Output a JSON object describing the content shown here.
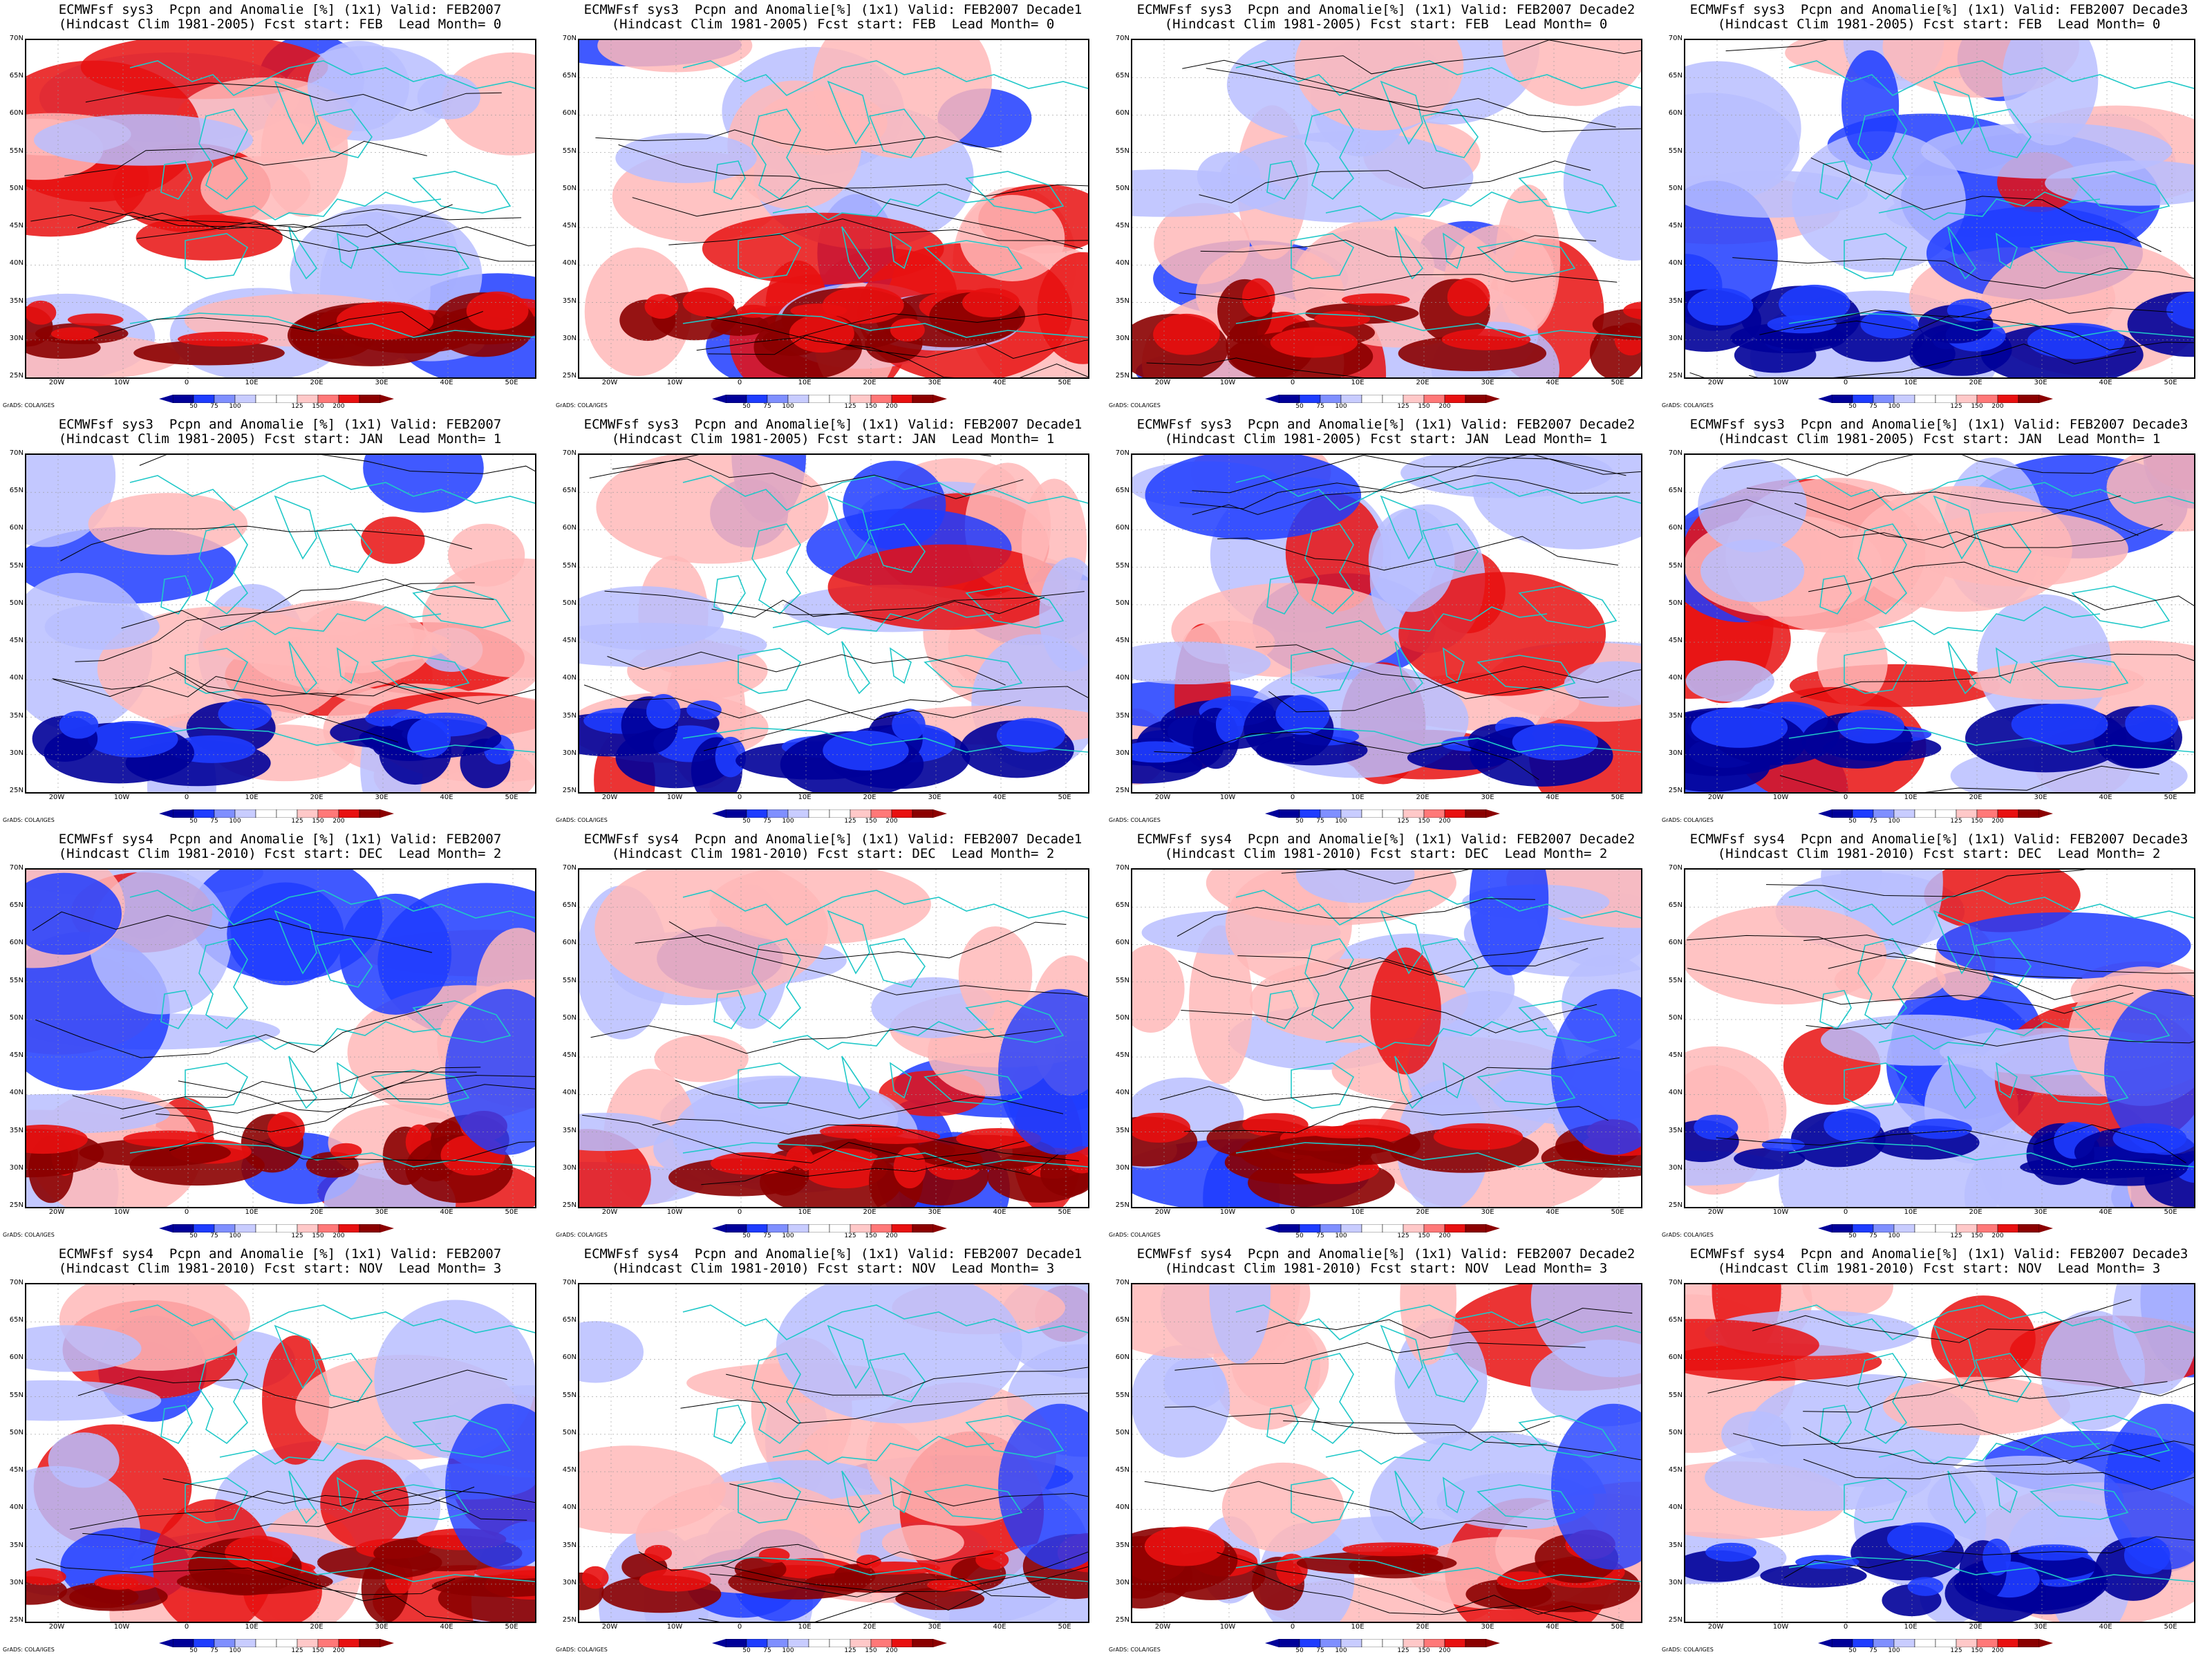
{
  "panels": [
    {
      "line1": "ECMWFsf sys3  Pcpn and Anomalie [%] (1x1) Valid: FEB2007",
      "line2": "(Hindcast Clim 1981-2005) Fcst start: FEB  Lead Month= 0"
    },
    {
      "line1": "ECMWFsf sys3  Pcpn and Anomalie[%] (1x1) Valid: FEB2007 Decade1",
      "line2": "(Hindcast Clim 1981-2005) Fcst start: FEB  Lead Month= 0"
    },
    {
      "line1": "ECMWFsf sys3  Pcpn and Anomalie[%] (1x1) Valid: FEB2007 Decade2",
      "line2": "(Hindcast Clim 1981-2005) Fcst start: FEB  Lead Month= 0"
    },
    {
      "line1": "ECMWFsf sys3  Pcpn and Anomalie[%] (1x1) Valid: FEB2007 Decade3",
      "line2": "(Hindcast Clim 1981-2005) Fcst start: FEB  Lead Month= 0"
    },
    {
      "line1": "ECMWFsf sys3  Pcpn and Anomalie [%] (1x1) Valid: FEB2007",
      "line2": "(Hindcast Clim 1981-2005) Fcst start: JAN  Lead Month= 1"
    },
    {
      "line1": "ECMWFsf sys3  Pcpn and Anomalie[%] (1x1) Valid: FEB2007 Decade1",
      "line2": "(Hindcast Clim 1981-2005) Fcst start: JAN  Lead Month= 1"
    },
    {
      "line1": "ECMWFsf sys3  Pcpn and Anomalie[%] (1x1) Valid: FEB2007 Decade2",
      "line2": "(Hindcast Clim 1981-2005) Fcst start: JAN  Lead Month= 1"
    },
    {
      "line1": "ECMWFsf sys3  Pcpn and Anomalie[%] (1x1) Valid: FEB2007 Decade3",
      "line2": "(Hindcast Clim 1981-2005) Fcst start: JAN  Lead Month= 1"
    },
    {
      "line1": "ECMWFsf sys4  Pcpn and Anomalie [%] (1x1) Valid: FEB2007",
      "line2": "(Hindcast Clim 1981-2010) Fcst start: DEC  Lead Month= 2"
    },
    {
      "line1": "ECMWFsf sys4  Pcpn and Anomalie[%] (1x1) Valid: FEB2007 Decade1",
      "line2": "(Hindcast Clim 1981-2010) Fcst start: DEC  Lead Month= 2"
    },
    {
      "line1": "ECMWFsf sys4  Pcpn and Anomalie[%] (1x1) Valid: FEB2007 Decade2",
      "line2": "(Hindcast Clim 1981-2010) Fcst start: DEC  Lead Month= 2"
    },
    {
      "line1": "ECMWFsf sys4  Pcpn and Anomalie[%] (1x1) Valid: FEB2007 Decade3",
      "line2": "(Hindcast Clim 1981-2010) Fcst start: DEC  Lead Month= 2"
    },
    {
      "line1": "ECMWFsf sys4  Pcpn and Anomalie [%] (1x1) Valid: FEB2007",
      "line2": "(Hindcast Clim 1981-2010) Fcst start: NOV  Lead Month= 3"
    },
    {
      "line1": "ECMWFsf sys4  Pcpn and Anomalie[%] (1x1) Valid: FEB2007 Decade1",
      "line2": "(Hindcast Clim 1981-2010) Fcst start: NOV  Lead Month= 3"
    },
    {
      "line1": "ECMWFsf sys4  Pcpn and Anomalie[%] (1x1) Valid: FEB2007 Decade2",
      "line2": "(Hindcast Clim 1981-2010) Fcst start: NOV  Lead Month= 3"
    },
    {
      "line1": "ECMWFsf sys4  Pcpn and Anomalie[%] (1x1) Valid: FEB2007 Decade3",
      "line2": "(Hindcast Clim 1981-2010) Fcst start: NOV  Lead Month= 3"
    }
  ],
  "lat_labels": [
    "70N",
    "65N",
    "60N",
    "55N",
    "50N",
    "45N",
    "40N",
    "35N",
    "30N",
    "25N"
  ],
  "lon_labels": [
    "20W",
    "10W",
    "0",
    "10E",
    "20E",
    "30E",
    "40E",
    "50E"
  ],
  "colorbar": {
    "labels": [
      "50",
      "75",
      "100",
      "125",
      "150",
      "200"
    ],
    "colors": [
      "#000099",
      "#1e3cff",
      "#7f8fff",
      "#c8ccff",
      "#ffffff",
      "#ffffff",
      "#ffc8c8",
      "#ff7878",
      "#e81010",
      "#8b0000"
    ]
  },
  "credit": "GrADS: COLA/IGES",
  "colors": {
    "coast": "#20c8c8",
    "contour": "#000000",
    "strong_blue": "#000099",
    "blue": "#1e3cff",
    "light_blue": "#b8beff",
    "light_red": "#ffb8b8",
    "red": "#e81010",
    "dark_red": "#8b0000"
  }
}
